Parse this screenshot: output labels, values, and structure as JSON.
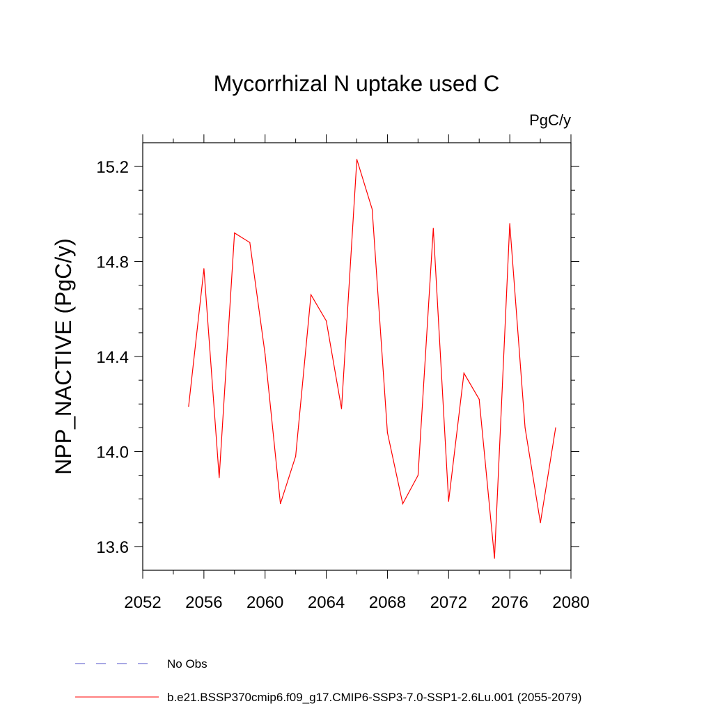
{
  "chart_data": {
    "type": "line",
    "title": "Mycorrhizal N uptake used C",
    "units_label": "PgC/y",
    "xlabel": "",
    "ylabel": "NPP_NACTIVE  (PgC/y)",
    "xlim": [
      2052,
      2080
    ],
    "ylim": [
      13.5,
      15.3
    ],
    "x_ticks": [
      2052,
      2056,
      2060,
      2064,
      2068,
      2072,
      2076,
      2080
    ],
    "x_tick_labels": [
      "2052",
      "2056",
      "2060",
      "2064",
      "2068",
      "2072",
      "2076",
      "2080"
    ],
    "y_ticks": [
      13.6,
      14.0,
      14.4,
      14.8,
      15.2
    ],
    "y_tick_labels": [
      "13.6",
      "14.0",
      "14.4",
      "14.8",
      "15.2"
    ],
    "grid": false,
    "legend_position": "bottom",
    "series": [
      {
        "name": "b.e21.BSSP370cmip6.f09_g17.CMIP6-SSP3-7.0-SSP1-2.6Lu.001 (2055-2079)",
        "color": "#ff0000",
        "style": "solid",
        "x": [
          2055,
          2056,
          2057,
          2058,
          2059,
          2060,
          2061,
          2062,
          2063,
          2064,
          2065,
          2066,
          2067,
          2068,
          2069,
          2070,
          2071,
          2072,
          2073,
          2074,
          2075,
          2076,
          2077,
          2078,
          2079
        ],
        "y": [
          14.19,
          14.77,
          13.89,
          14.92,
          14.88,
          14.41,
          13.78,
          13.98,
          14.66,
          14.55,
          14.18,
          15.23,
          15.02,
          14.08,
          13.78,
          13.9,
          14.94,
          13.79,
          14.33,
          14.22,
          13.55,
          14.96,
          14.1,
          13.7,
          14.1
        ]
      }
    ],
    "legend": [
      {
        "label": "No Obs",
        "color": "#5050c8",
        "style": "dashed"
      },
      {
        "label": "b.e21.BSSP370cmip6.f09_g17.CMIP6-SSP3-7.0-SSP1-2.6Lu.001 (2055-2079)",
        "color": "#ff0000",
        "style": "solid"
      }
    ]
  }
}
